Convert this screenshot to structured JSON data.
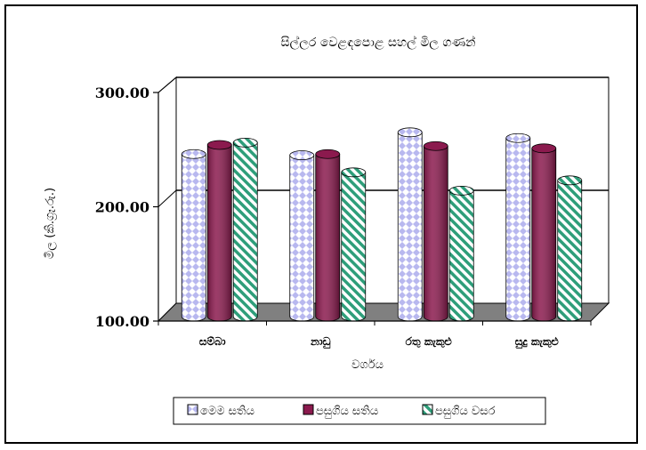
{
  "chart_data": {
    "type": "bar",
    "title": "සිල්ලර වෙළඳපොළ සහල් මිල ගණන්",
    "xlabel": "වර්ගය",
    "ylabel": "මිල (කි.ග්‍රෑ.රු.)",
    "ylim": [
      100,
      300
    ],
    "yticks": [
      "100.00",
      "200.00",
      "300.00"
    ],
    "grid": true,
    "legend_position": "bottom",
    "categories": [
      "සම්බා",
      "නාඩු",
      "රතු කැකුළු",
      "සුදු කැකුළු"
    ],
    "series": [
      {
        "name": "මෙම සතිය",
        "values": [
          243,
          242,
          262,
          257
        ],
        "color": "#c7c7f5",
        "pattern": "diamond"
      },
      {
        "name": "පසුගිය සතිය",
        "values": [
          251,
          243,
          250,
          248
        ],
        "color": "#8b1a4e",
        "pattern": "solid"
      },
      {
        "name": "පසුගිය වසර",
        "values": [
          253,
          227,
          211,
          220
        ],
        "color": "#2e9e7a",
        "pattern": "stripe"
      }
    ]
  }
}
